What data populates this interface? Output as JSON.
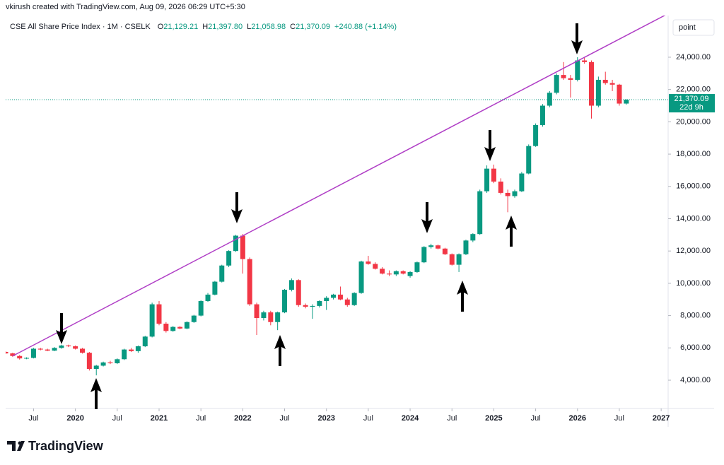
{
  "header": "vkirush created with TradingView.com, Aug 09, 2026 06:29 UTC+5:30",
  "chart_data": {
    "type": "candlestick",
    "symbol": "CSE All Share Price Index · 1M · CSELK",
    "legend_values": [
      {
        "prefix": "O",
        "label": "21,129.21"
      },
      {
        "prefix": "H",
        "label": "21,397.80"
      },
      {
        "prefix": "L",
        "label": "21,058.98"
      },
      {
        "prefix": "C",
        "label": "21,370.09"
      }
    ],
    "change": "+240.88 (+1.14%)",
    "last_price_label": "21,370.09",
    "countdown": "22d 9h",
    "scale_button": "point",
    "up_color": "#089981",
    "down_color": "#f23645",
    "x": [
      "2019-03",
      "2019-04",
      "2019-05",
      "2019-06",
      "2019-07",
      "2019-08",
      "2019-09",
      "2019-10",
      "2019-11",
      "2019-12",
      "2020-01",
      "2020-02",
      "2020-03",
      "2020-04",
      "2020-05",
      "2020-06",
      "2020-07",
      "2020-08",
      "2020-09",
      "2020-10",
      "2020-11",
      "2020-12",
      "2021-01",
      "2021-02",
      "2021-03",
      "2021-04",
      "2021-05",
      "2021-06",
      "2021-07",
      "2021-08",
      "2021-09",
      "2021-10",
      "2021-11",
      "2021-12",
      "2022-01",
      "2022-02",
      "2022-03",
      "2022-04",
      "2022-05",
      "2022-06",
      "2022-07",
      "2022-08",
      "2022-09",
      "2022-10",
      "2022-11",
      "2022-12",
      "2023-01",
      "2023-02",
      "2023-03",
      "2023-04",
      "2023-05",
      "2023-06",
      "2023-07",
      "2023-08",
      "2023-09",
      "2023-10",
      "2023-11",
      "2023-12",
      "2024-01",
      "2024-02",
      "2024-03",
      "2024-04",
      "2024-05",
      "2024-06",
      "2024-07",
      "2024-08",
      "2024-09",
      "2024-10",
      "2024-11",
      "2024-12",
      "2025-01",
      "2025-02",
      "2025-03",
      "2025-04",
      "2025-05",
      "2025-06",
      "2025-07",
      "2025-08",
      "2025-09",
      "2025-10",
      "2025-11",
      "2025-12",
      "2026-01",
      "2026-02",
      "2026-03",
      "2026-04",
      "2026-05",
      "2026-06",
      "2026-07",
      "2026-08"
    ],
    "open": [
      5750,
      5660,
      5500,
      5350,
      5380,
      5950,
      5900,
      5830,
      6000,
      6150,
      6100,
      5950,
      5700,
      4700,
      4900,
      5100,
      5050,
      5300,
      5900,
      5800,
      6100,
      6700,
      8700,
      7500,
      7050,
      7300,
      7200,
      7600,
      8000,
      8900,
      9300,
      10100,
      11100,
      12000,
      12950,
      11500,
      8700,
      7850,
      8200,
      7600,
      8200,
      9600,
      10200,
      8650,
      8550,
      8600,
      8900,
      9100,
      9300,
      9000,
      8650,
      9400,
      11350,
      11200,
      10900,
      10600,
      10550,
      10750,
      10450,
      10700,
      11300,
      12250,
      12350,
      12150,
      11800,
      11150,
      11800,
      12650,
      13050,
      15700,
      17100,
      16300,
      15600,
      15400,
      15700,
      16800,
      18500,
      19800,
      21000,
      21800,
      22900,
      22700,
      22600,
      23800,
      23700,
      21000,
      22600,
      22400,
      22300,
      21129.21
    ],
    "high": [
      5800,
      5700,
      5560,
      5420,
      6000,
      6000,
      5950,
      6050,
      6200,
      6200,
      6150,
      6000,
      5750,
      4950,
      5150,
      5200,
      5350,
      5950,
      6000,
      6150,
      6750,
      8800,
      8900,
      7600,
      7350,
      7350,
      7650,
      8050,
      8950,
      9400,
      10150,
      11150,
      12050,
      13000,
      13050,
      11600,
      8800,
      8300,
      8300,
      8250,
      9650,
      10300,
      10250,
      8750,
      8700,
      8950,
      9200,
      9350,
      9800,
      9100,
      9450,
      11400,
      11700,
      11300,
      11000,
      10800,
      10800,
      10800,
      10750,
      11350,
      12300,
      12450,
      12400,
      12200,
      11850,
      11850,
      12700,
      13100,
      15800,
      17300,
      17350,
      16500,
      15800,
      15800,
      16900,
      18600,
      19900,
      21100,
      21900,
      23000,
      23700,
      22900,
      24000,
      24000,
      23800,
      22800,
      23100,
      22600,
      22350,
      21397.8
    ],
    "low": [
      5620,
      5450,
      5280,
      5300,
      5350,
      5850,
      5800,
      5800,
      5950,
      6050,
      5900,
      5650,
      4600,
      4300,
      4850,
      5000,
      5000,
      5250,
      5750,
      5700,
      6050,
      6650,
      7400,
      6950,
      7000,
      7150,
      7150,
      7550,
      7950,
      8850,
      9250,
      10050,
      11000,
      11950,
      10600,
      8600,
      6800,
      7700,
      7400,
      7100,
      8150,
      9500,
      8550,
      8450,
      7800,
      8500,
      8350,
      9000,
      8950,
      8550,
      8600,
      9350,
      11150,
      10850,
      10550,
      10450,
      10450,
      10550,
      10350,
      10650,
      11250,
      12150,
      12100,
      11750,
      11100,
      10700,
      11750,
      12550,
      13000,
      15600,
      16200,
      15500,
      14400,
      15300,
      15650,
      16750,
      18450,
      19700,
      20900,
      21700,
      22600,
      21500,
      22500,
      23600,
      20200,
      20900,
      22300,
      21900,
      21000,
      21058.98
    ],
    "close": [
      5660,
      5500,
      5350,
      5380,
      5950,
      5900,
      5830,
      6000,
      6150,
      6100,
      5950,
      5700,
      4700,
      4900,
      5100,
      5050,
      5300,
      5900,
      5800,
      6100,
      6700,
      8700,
      7500,
      7050,
      7300,
      7200,
      7600,
      8000,
      8900,
      9300,
      10100,
      11100,
      12000,
      12950,
      11500,
      8700,
      7850,
      8200,
      7600,
      8200,
      9600,
      10200,
      8650,
      8550,
      8600,
      8900,
      9100,
      9300,
      9000,
      8650,
      9400,
      11350,
      11200,
      10900,
      10600,
      10550,
      10750,
      10600,
      10700,
      11300,
      12250,
      12350,
      12150,
      11800,
      11150,
      11800,
      12650,
      13050,
      15700,
      17100,
      16300,
      15600,
      15400,
      15700,
      16800,
      18500,
      19800,
      21000,
      21800,
      22900,
      22700,
      22600,
      23800,
      23700,
      21000,
      22600,
      22400,
      22300,
      21129.21,
      21370.09
    ],
    "trendline": {
      "x": [
        "2019-04",
        "2027-02"
      ],
      "y": [
        5500,
        26700
      ],
      "color": "#b03fc6"
    },
    "xlim": [
      "2019-03",
      "2027-02"
    ],
    "xticks": [
      {
        "value": "2019-07",
        "label": "Jul"
      },
      {
        "value": "2020-01",
        "label": "2020"
      },
      {
        "value": "2020-07",
        "label": "Jul"
      },
      {
        "value": "2021-01",
        "label": "2021"
      },
      {
        "value": "2021-07",
        "label": "Jul"
      },
      {
        "value": "2022-01",
        "label": "2022"
      },
      {
        "value": "2022-07",
        "label": "Jul"
      },
      {
        "value": "2023-01",
        "label": "2023"
      },
      {
        "value": "2023-07",
        "label": "Jul"
      },
      {
        "value": "2024-01",
        "label": "2024"
      },
      {
        "value": "2024-07",
        "label": "Jul"
      },
      {
        "value": "2025-01",
        "label": "2025"
      },
      {
        "value": "2025-07",
        "label": "Jul"
      },
      {
        "value": "2026-01",
        "label": "2026"
      },
      {
        "value": "2026-07",
        "label": "Jul"
      },
      {
        "value": "2027-01",
        "label": "2027"
      }
    ],
    "ylim": [
      2250,
      26580
    ],
    "yticks": [
      {
        "value": 4000,
        "label": "4,000.00"
      },
      {
        "value": 6000,
        "label": "6,000.00"
      },
      {
        "value": 8000,
        "label": "8,000.00"
      },
      {
        "value": 10000,
        "label": "10,000.00"
      },
      {
        "value": 12000,
        "label": "12,000.00"
      },
      {
        "value": 14000,
        "label": "14,000.00"
      },
      {
        "value": 16000,
        "label": "16,000.00"
      },
      {
        "value": 18000,
        "label": "18,000.00"
      },
      {
        "value": 20000,
        "label": "20,000.00"
      },
      {
        "value": 22000,
        "label": "22,000.00"
      },
      {
        "value": 24000,
        "label": "24,000.00"
      }
    ],
    "grid": false
  },
  "brand": "TradingView"
}
